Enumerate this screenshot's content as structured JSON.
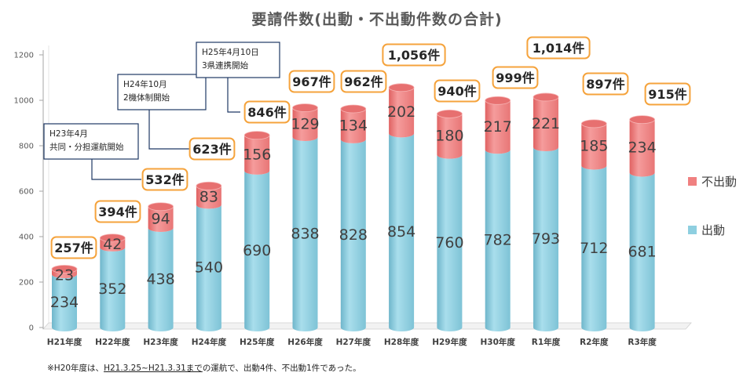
{
  "chart_data": {
    "type": "bar",
    "stacked": true,
    "title": "要請件数(出動・不出動件数の合計)",
    "categories": [
      "H21年度",
      "H22年度",
      "H23年度",
      "H24年度",
      "H25年度",
      "H26年度",
      "H27年度",
      "H28年度",
      "H29年度",
      "H30年度",
      "R1年度",
      "R2年度",
      "R3年度"
    ],
    "series": [
      {
        "name": "出動",
        "color": "#8ECFE0",
        "values": [
          234,
          352,
          438,
          540,
          690,
          838,
          828,
          854,
          760,
          782,
          793,
          712,
          681
        ]
      },
      {
        "name": "不出動",
        "color": "#F08080",
        "values": [
          23,
          42,
          94,
          83,
          156,
          129,
          134,
          202,
          180,
          217,
          221,
          185,
          234
        ]
      }
    ],
    "totals_labels": [
      "257件",
      "394件",
      "532件",
      "623件",
      "846件",
      "967件",
      "962件",
      "1,056件",
      "940件",
      "999件",
      "1,014件",
      "897件",
      "915件"
    ],
    "ylim": [
      0,
      1200
    ],
    "yticks": [
      "0",
      "200",
      "400",
      "600",
      "800",
      "1000",
      "1200"
    ],
    "grid": false,
    "legend_position": "right",
    "annotations": [
      {
        "category": "H23年度",
        "lines": [
          "H23年4月",
          "共同・分担運航開始"
        ]
      },
      {
        "category": "H24年度",
        "lines": [
          "H24年10月",
          "2機体制開始"
        ]
      },
      {
        "category": "H25年度",
        "lines": [
          "H25年4月10日",
          "3県連携開始"
        ]
      }
    ]
  },
  "footnote": {
    "prefix": "※H20年度は、",
    "underlined": "H21.3.25~H21.3.31まで",
    "suffix": "の運航で、出動4件、不出動1件であった。"
  }
}
